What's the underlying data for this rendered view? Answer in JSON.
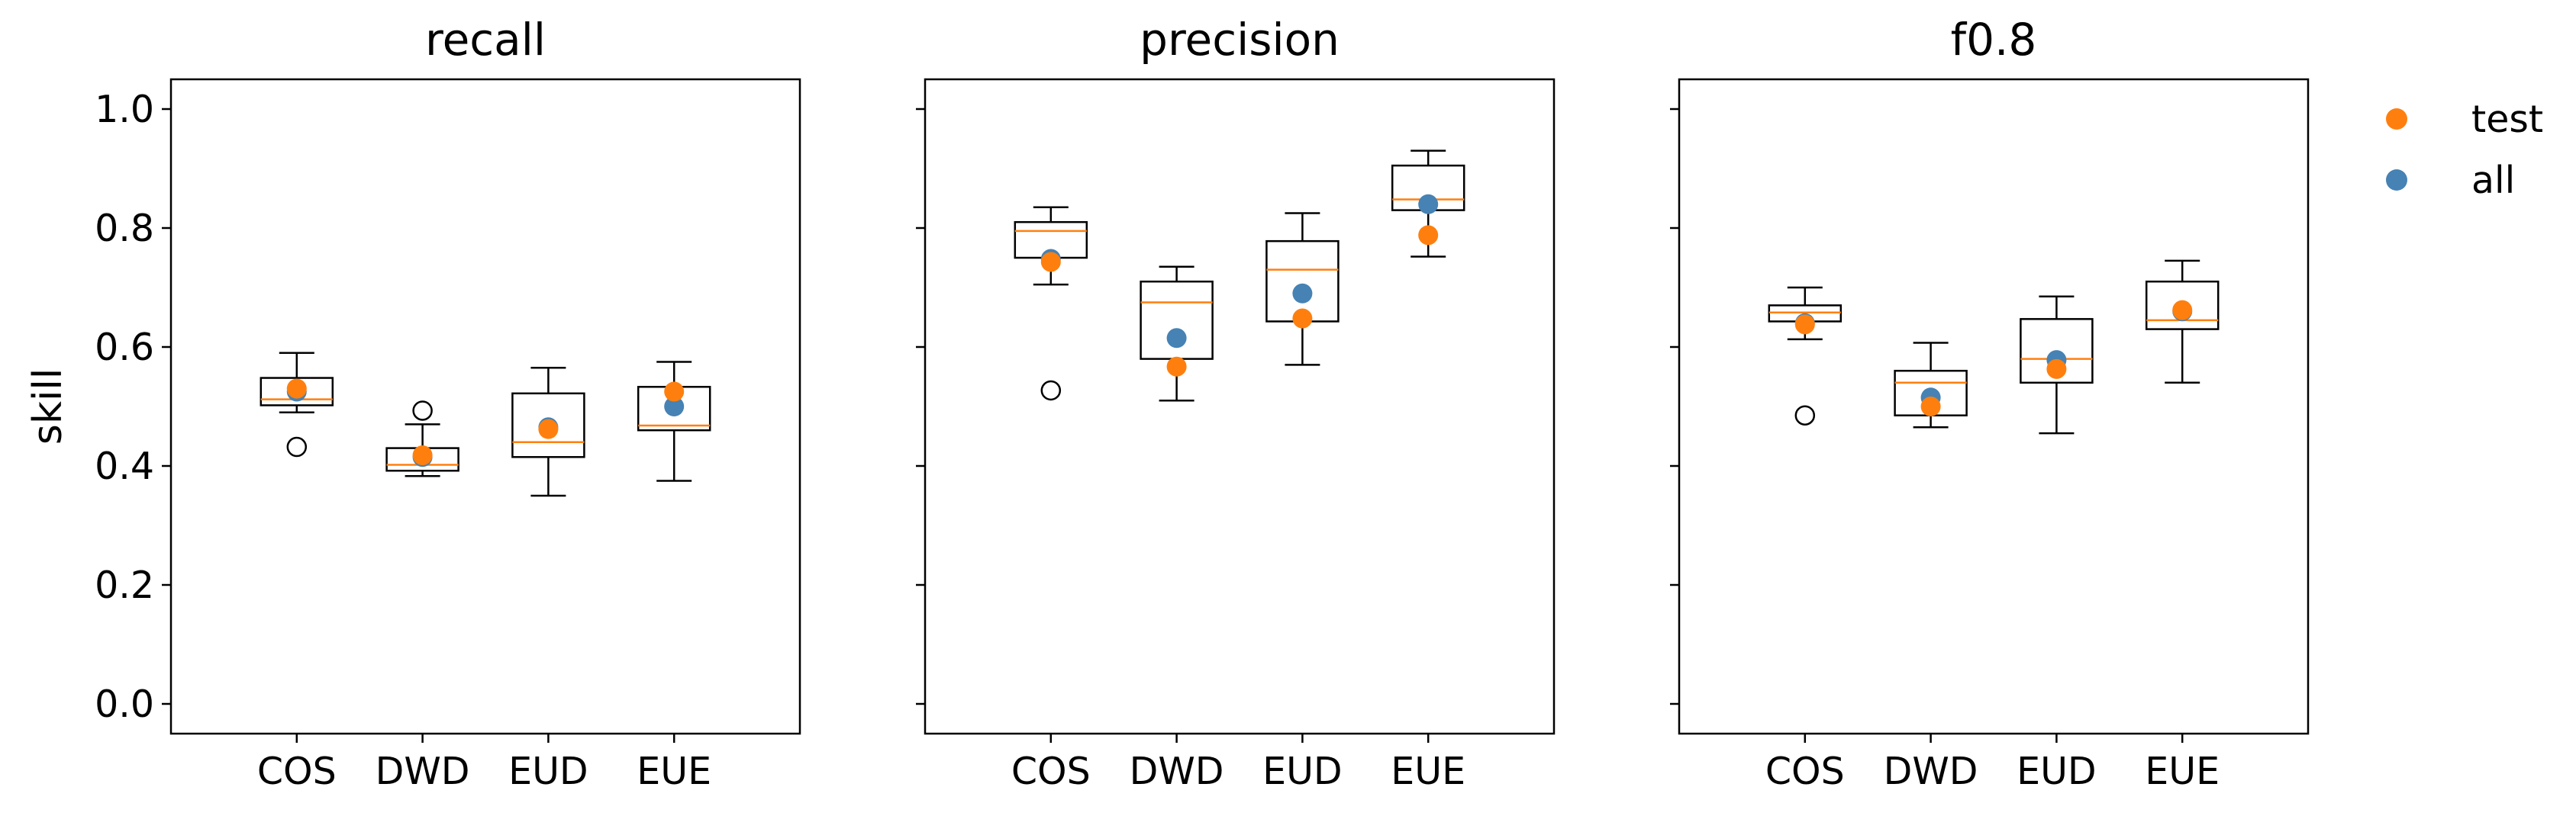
{
  "chart_data": {
    "type": "box",
    "ylabel": "skill",
    "ylim": [
      -0.05,
      1.05
    ],
    "yticks": [
      0.0,
      0.2,
      0.4,
      0.6,
      0.8,
      1.0
    ],
    "ytick_labels": [
      "0.0",
      "0.2",
      "0.4",
      "0.6",
      "0.8",
      "1.0"
    ],
    "categories": [
      "COS",
      "DWD",
      "EUD",
      "EUE"
    ],
    "legend": {
      "position": "outside-right-top",
      "entries": [
        {
          "label": "test",
          "color": "#ff7f0e"
        },
        {
          "label": "all",
          "color": "#4682b4"
        }
      ]
    },
    "colors": {
      "median": "#ff7f0e",
      "test": "#ff7f0e",
      "all": "#4682b4"
    },
    "panels": [
      {
        "title": "recall",
        "boxes": [
          {
            "category": "COS",
            "whislo": 0.49,
            "q1": 0.502,
            "med": 0.512,
            "q3": 0.548,
            "whishi": 0.59,
            "fliers": [
              0.432
            ]
          },
          {
            "category": "DWD",
            "whislo": 0.383,
            "q1": 0.392,
            "med": 0.402,
            "q3": 0.43,
            "whishi": 0.47,
            "fliers": [
              0.493
            ]
          },
          {
            "category": "EUD",
            "whislo": 0.35,
            "q1": 0.415,
            "med": 0.44,
            "q3": 0.522,
            "whishi": 0.565,
            "fliers": []
          },
          {
            "category": "EUE",
            "whislo": 0.375,
            "q1": 0.46,
            "med": 0.468,
            "q3": 0.533,
            "whishi": 0.575,
            "fliers": []
          }
        ],
        "test": [
          0.53,
          0.418,
          0.462,
          0.525
        ],
        "all": [
          0.525,
          0.415,
          0.465,
          0.5
        ]
      },
      {
        "title": "precision",
        "boxes": [
          {
            "category": "COS",
            "whislo": 0.705,
            "q1": 0.75,
            "med": 0.795,
            "q3": 0.81,
            "whishi": 0.835,
            "fliers": [
              0.527
            ]
          },
          {
            "category": "DWD",
            "whislo": 0.51,
            "q1": 0.58,
            "med": 0.675,
            "q3": 0.71,
            "whishi": 0.735,
            "fliers": []
          },
          {
            "category": "EUD",
            "whislo": 0.57,
            "q1": 0.643,
            "med": 0.73,
            "q3": 0.778,
            "whishi": 0.825,
            "fliers": []
          },
          {
            "category": "EUE",
            "whislo": 0.752,
            "q1": 0.83,
            "med": 0.848,
            "q3": 0.905,
            "whishi": 0.93,
            "fliers": []
          }
        ],
        "test": [
          0.743,
          0.567,
          0.648,
          0.788
        ],
        "all": [
          0.748,
          0.615,
          0.69,
          0.84
        ]
      },
      {
        "title": "f0.8",
        "boxes": [
          {
            "category": "COS",
            "whislo": 0.613,
            "q1": 0.643,
            "med": 0.658,
            "q3": 0.67,
            "whishi": 0.7,
            "fliers": [
              0.485
            ]
          },
          {
            "category": "DWD",
            "whislo": 0.465,
            "q1": 0.485,
            "med": 0.54,
            "q3": 0.56,
            "whishi": 0.607,
            "fliers": []
          },
          {
            "category": "EUD",
            "whislo": 0.455,
            "q1": 0.54,
            "med": 0.58,
            "q3": 0.647,
            "whishi": 0.685,
            "fliers": []
          },
          {
            "category": "EUE",
            "whislo": 0.54,
            "q1": 0.63,
            "med": 0.645,
            "q3": 0.71,
            "whishi": 0.745,
            "fliers": []
          }
        ],
        "test": [
          0.638,
          0.5,
          0.563,
          0.662
        ],
        "all": [
          0.64,
          0.515,
          0.578,
          0.66
        ]
      }
    ]
  }
}
